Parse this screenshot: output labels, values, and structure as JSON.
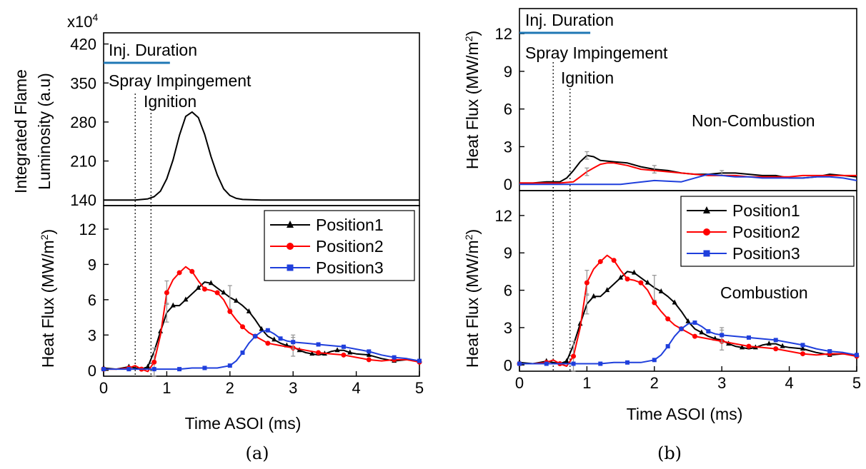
{
  "figure": {
    "caption_a": "(a)",
    "caption_b": "(b)",
    "xlabel": "Time ASOI (ms)",
    "y_multiplier": "x10",
    "y_multiplier_exp": "4",
    "luminosity_ylabel_line1": "Integrated Flame",
    "luminosity_ylabel_line2": "Luminosity (a.u)",
    "heatflux_ylabel_prefix": "Heat Flux (MW/m",
    "heatflux_ylabel_sup": "2",
    "heatflux_ylabel_suffix": ")",
    "annotation_injection": "Inj. Duration",
    "annotation_spray": "Spray Impingement",
    "annotation_ignition": "Ignition",
    "label_noncombustion": "Non-Combustion",
    "label_combustion": "Combustion",
    "colors": {
      "position1": "#000000",
      "position2": "#ff0000",
      "position3": "#1f3fdc",
      "injection_bar": "#1f77b4",
      "error_bar": "#999999"
    }
  },
  "chart_data": [
    {
      "panel": "a-top",
      "type": "line",
      "title": "",
      "xlabel": "",
      "ylabel": "Integrated Flame Luminosity (a.u)",
      "xlim": [
        0,
        5
      ],
      "ylim": [
        130,
        440
      ],
      "yticks": [
        140,
        210,
        280,
        350,
        420
      ],
      "x": [
        0,
        0.5,
        0.7,
        0.8,
        0.9,
        1.0,
        1.1,
        1.2,
        1.3,
        1.4,
        1.5,
        1.6,
        1.7,
        1.8,
        1.9,
        2.0,
        2.1,
        2.2,
        2.5,
        3.0,
        4.0,
        5.0
      ],
      "series": [
        {
          "values": [
            140,
            140,
            142,
            146,
            156,
            178,
            212,
            256,
            290,
            298,
            288,
            258,
            218,
            185,
            160,
            148,
            143,
            141,
            140,
            140,
            140,
            140
          ]
        }
      ],
      "injection_duration_ms": [
        0,
        1.05
      ],
      "spray_impingement_ms": 0.5,
      "ignition_ms": 0.75
    },
    {
      "panel": "a-bottom",
      "type": "line",
      "title": "",
      "xlabel": "Time ASOI (ms)",
      "ylabel": "Heat Flux (MW/m2)",
      "xlim": [
        0,
        5
      ],
      "ylim": [
        -0.5,
        14
      ],
      "yticks": [
        0,
        3,
        6,
        9,
        12
      ],
      "xticks": [
        0,
        1,
        2,
        3,
        4,
        5
      ],
      "legend": "top-right",
      "spray_impingement_ms": 0.5,
      "ignition_ms": 0.75,
      "series": [
        {
          "name": "Position1",
          "marker": "triangle",
          "x": [
            0,
            0.2,
            0.4,
            0.6,
            0.7,
            0.8,
            0.9,
            1.0,
            1.1,
            1.2,
            1.3,
            1.4,
            1.5,
            1.6,
            1.7,
            1.8,
            1.9,
            2.0,
            2.1,
            2.2,
            2.3,
            2.4,
            2.5,
            2.6,
            2.7,
            2.8,
            2.9,
            3.0,
            3.1,
            3.2,
            3.3,
            3.4,
            3.5,
            3.6,
            3.7,
            3.8,
            3.9,
            4.0,
            4.2,
            4.4,
            4.6,
            4.8,
            5.0
          ],
          "values": [
            0.2,
            0.1,
            0.3,
            0.1,
            0.3,
            1.6,
            3.3,
            4.9,
            5.5,
            5.5,
            6.0,
            6.5,
            7.0,
            7.5,
            7.4,
            7.0,
            6.6,
            6.2,
            5.9,
            5.5,
            5.0,
            4.3,
            3.5,
            2.9,
            2.6,
            2.3,
            2.1,
            2.0,
            1.7,
            1.5,
            1.4,
            1.3,
            1.4,
            1.6,
            1.7,
            1.7,
            1.5,
            1.4,
            1.3,
            1.0,
            0.8,
            0.9,
            0.8
          ],
          "error_x": [
            1.0,
            2.0,
            3.0
          ],
          "error_y": [
            0.8,
            1.0,
            0.8
          ]
        },
        {
          "name": "Position2",
          "marker": "circle",
          "x": [
            0,
            0.2,
            0.4,
            0.5,
            0.6,
            0.7,
            0.8,
            0.9,
            1.0,
            1.1,
            1.2,
            1.3,
            1.4,
            1.5,
            1.6,
            1.7,
            1.8,
            1.9,
            2.0,
            2.1,
            2.2,
            2.3,
            2.4,
            2.5,
            2.6,
            2.8,
            3.0,
            3.2,
            3.4,
            3.6,
            3.8,
            4.0,
            4.2,
            4.4,
            4.6,
            4.8,
            5.0
          ],
          "values": [
            0.1,
            0.1,
            0.2,
            0.4,
            0.1,
            -0.1,
            0.7,
            3.0,
            6.6,
            7.7,
            8.3,
            8.8,
            8.4,
            7.6,
            6.9,
            6.8,
            6.6,
            6.0,
            5.0,
            4.3,
            3.7,
            3.2,
            2.9,
            2.6,
            2.3,
            2.1,
            1.9,
            1.7,
            1.5,
            1.4,
            1.3,
            1.1,
            0.9,
            0.8,
            0.9,
            0.9,
            0.7
          ],
          "error_x": [
            0.8,
            1.0
          ],
          "error_y": [
            1.2,
            1.0
          ]
        },
        {
          "name": "Position3",
          "marker": "square",
          "x": [
            0,
            0.2,
            0.4,
            0.6,
            0.8,
            1.0,
            1.2,
            1.4,
            1.6,
            1.8,
            2.0,
            2.1,
            2.2,
            2.3,
            2.4,
            2.5,
            2.6,
            2.7,
            2.8,
            2.9,
            3.0,
            3.2,
            3.4,
            3.6,
            3.8,
            4.0,
            4.2,
            4.4,
            4.6,
            4.8,
            5.0
          ],
          "values": [
            0.1,
            0.1,
            0.1,
            0.1,
            0.1,
            0.1,
            0.1,
            0.2,
            0.2,
            0.2,
            0.4,
            0.8,
            1.5,
            2.3,
            2.9,
            3.3,
            3.4,
            3.1,
            2.7,
            2.5,
            2.4,
            2.3,
            2.2,
            2.1,
            2.0,
            1.8,
            1.6,
            1.3,
            1.1,
            1.0,
            0.8
          ],
          "error_x": [
            3.0
          ],
          "error_y": [
            0.6
          ]
        }
      ]
    },
    {
      "panel": "b-top",
      "type": "line",
      "title": "",
      "xlabel": "",
      "ylabel": "Heat Flux (MW/m2)",
      "xlim": [
        0,
        5
      ],
      "ylim": [
        -0.5,
        14
      ],
      "yticks": [
        0,
        3,
        6,
        9,
        12
      ],
      "injection_duration_ms": [
        0,
        1.05
      ],
      "spray_impingement_ms": 0.5,
      "ignition_ms": 0.75,
      "series": [
        {
          "name": "Position1",
          "x": [
            0,
            0.2,
            0.4,
            0.6,
            0.7,
            0.8,
            0.9,
            1.0,
            1.1,
            1.2,
            1.4,
            1.6,
            1.8,
            2.0,
            2.2,
            2.4,
            2.6,
            2.8,
            3.0,
            3.2,
            3.4,
            3.6,
            3.8,
            4.0,
            4.2,
            4.4,
            4.6,
            4.8,
            5.0
          ],
          "values": [
            0.1,
            0.1,
            0.2,
            0.2,
            0.5,
            1.1,
            1.8,
            2.3,
            2.2,
            1.9,
            1.8,
            1.7,
            1.4,
            1.2,
            1.1,
            0.9,
            0.8,
            0.8,
            0.9,
            0.9,
            0.8,
            0.7,
            0.7,
            0.5,
            0.5,
            0.6,
            0.8,
            0.7,
            0.6
          ],
          "error_x": [
            1.0,
            2.0,
            3.0
          ],
          "error_y": [
            0.3,
            0.3,
            0.2
          ]
        },
        {
          "name": "Position2",
          "x": [
            0,
            0.2,
            0.4,
            0.6,
            0.8,
            0.9,
            1.0,
            1.1,
            1.2,
            1.3,
            1.4,
            1.6,
            1.8,
            2.0,
            2.2,
            2.4,
            2.6,
            2.8,
            3.0,
            3.2,
            3.4,
            3.6,
            3.8,
            4.0,
            4.2,
            4.4,
            4.6,
            4.8,
            5.0
          ],
          "values": [
            0.1,
            0.1,
            0.1,
            0.1,
            0.2,
            0.6,
            1.0,
            1.3,
            1.6,
            1.7,
            1.7,
            1.5,
            1.2,
            1.1,
            1.0,
            0.9,
            0.8,
            0.7,
            0.7,
            0.7,
            0.6,
            0.6,
            0.6,
            0.6,
            0.7,
            0.7,
            0.7,
            0.7,
            0.7
          ],
          "error_x": [
            1.0
          ],
          "error_y": [
            0.3
          ]
        },
        {
          "name": "Position3",
          "x": [
            0,
            0.5,
            1.0,
            1.5,
            2.0,
            2.4,
            2.6,
            2.8,
            3.0,
            3.2,
            3.4,
            3.6,
            3.8,
            4.0,
            4.2,
            4.4,
            4.6,
            4.8,
            5.0
          ],
          "values": [
            0.0,
            0.0,
            0.0,
            0.0,
            0.3,
            0.2,
            0.5,
            0.8,
            0.7,
            0.6,
            0.6,
            0.5,
            0.5,
            0.5,
            0.5,
            0.6,
            0.6,
            0.5,
            0.3
          ]
        }
      ]
    },
    {
      "panel": "b-bottom",
      "type": "line",
      "title": "",
      "xlabel": "Time ASOI (ms)",
      "ylabel": "Heat Flux (MW/m2)",
      "xlim": [
        0,
        5
      ],
      "ylim": [
        -0.5,
        14
      ],
      "yticks": [
        0,
        3,
        6,
        9,
        12
      ],
      "xticks": [
        0,
        1,
        2,
        3,
        4,
        5
      ],
      "legend": "top-right",
      "spray_impingement_ms": 0.5,
      "ignition_ms": 0.75,
      "series": [
        {
          "name": "Position1",
          "marker": "triangle",
          "x": [
            0,
            0.2,
            0.4,
            0.6,
            0.7,
            0.8,
            0.9,
            1.0,
            1.1,
            1.2,
            1.3,
            1.4,
            1.5,
            1.6,
            1.7,
            1.8,
            1.9,
            2.0,
            2.1,
            2.2,
            2.3,
            2.4,
            2.5,
            2.6,
            2.7,
            2.8,
            2.9,
            3.0,
            3.1,
            3.2,
            3.3,
            3.4,
            3.5,
            3.6,
            3.7,
            3.8,
            3.9,
            4.0,
            4.2,
            4.4,
            4.6,
            4.8,
            5.0
          ],
          "values": [
            0.2,
            0.1,
            0.3,
            0.1,
            0.3,
            1.6,
            3.3,
            4.9,
            5.5,
            5.5,
            6.0,
            6.5,
            7.0,
            7.5,
            7.4,
            7.0,
            6.6,
            6.2,
            5.9,
            5.5,
            5.0,
            4.3,
            3.5,
            2.9,
            2.6,
            2.3,
            2.1,
            2.0,
            1.7,
            1.5,
            1.4,
            1.3,
            1.4,
            1.6,
            1.7,
            1.7,
            1.5,
            1.4,
            1.3,
            1.0,
            0.8,
            0.9,
            0.8
          ],
          "error_x": [
            1.0,
            2.0,
            3.0
          ],
          "error_y": [
            0.8,
            1.0,
            0.8
          ]
        },
        {
          "name": "Position2",
          "marker": "circle",
          "x": [
            0,
            0.2,
            0.4,
            0.5,
            0.6,
            0.7,
            0.8,
            0.9,
            1.0,
            1.1,
            1.2,
            1.3,
            1.4,
            1.5,
            1.6,
            1.7,
            1.8,
            1.9,
            2.0,
            2.1,
            2.2,
            2.3,
            2.4,
            2.5,
            2.6,
            2.8,
            3.0,
            3.2,
            3.4,
            3.6,
            3.8,
            4.0,
            4.2,
            4.4,
            4.6,
            4.8,
            5.0
          ],
          "values": [
            0.1,
            0.1,
            0.2,
            0.4,
            0.1,
            -0.1,
            0.7,
            3.0,
            6.6,
            7.7,
            8.3,
            8.8,
            8.4,
            7.6,
            6.9,
            6.8,
            6.6,
            6.0,
            5.0,
            4.3,
            3.7,
            3.2,
            2.9,
            2.6,
            2.3,
            2.1,
            1.9,
            1.7,
            1.5,
            1.4,
            1.3,
            1.1,
            0.9,
            0.8,
            0.9,
            0.9,
            0.7
          ],
          "error_x": [
            0.8,
            1.0
          ],
          "error_y": [
            1.2,
            1.0
          ]
        },
        {
          "name": "Position3",
          "marker": "square",
          "x": [
            0,
            0.2,
            0.4,
            0.6,
            0.8,
            1.0,
            1.2,
            1.4,
            1.6,
            1.8,
            2.0,
            2.1,
            2.2,
            2.3,
            2.4,
            2.5,
            2.6,
            2.7,
            2.8,
            2.9,
            3.0,
            3.2,
            3.4,
            3.6,
            3.8,
            4.0,
            4.2,
            4.4,
            4.6,
            4.8,
            5.0
          ],
          "values": [
            0.1,
            0.1,
            0.1,
            0.1,
            0.1,
            0.1,
            0.1,
            0.2,
            0.2,
            0.2,
            0.4,
            0.8,
            1.5,
            2.3,
            2.9,
            3.3,
            3.4,
            3.1,
            2.7,
            2.5,
            2.4,
            2.3,
            2.2,
            2.1,
            2.0,
            1.8,
            1.6,
            1.3,
            1.1,
            1.0,
            0.8
          ],
          "error_x": [
            3.0
          ],
          "error_y": [
            0.6
          ]
        }
      ]
    }
  ]
}
